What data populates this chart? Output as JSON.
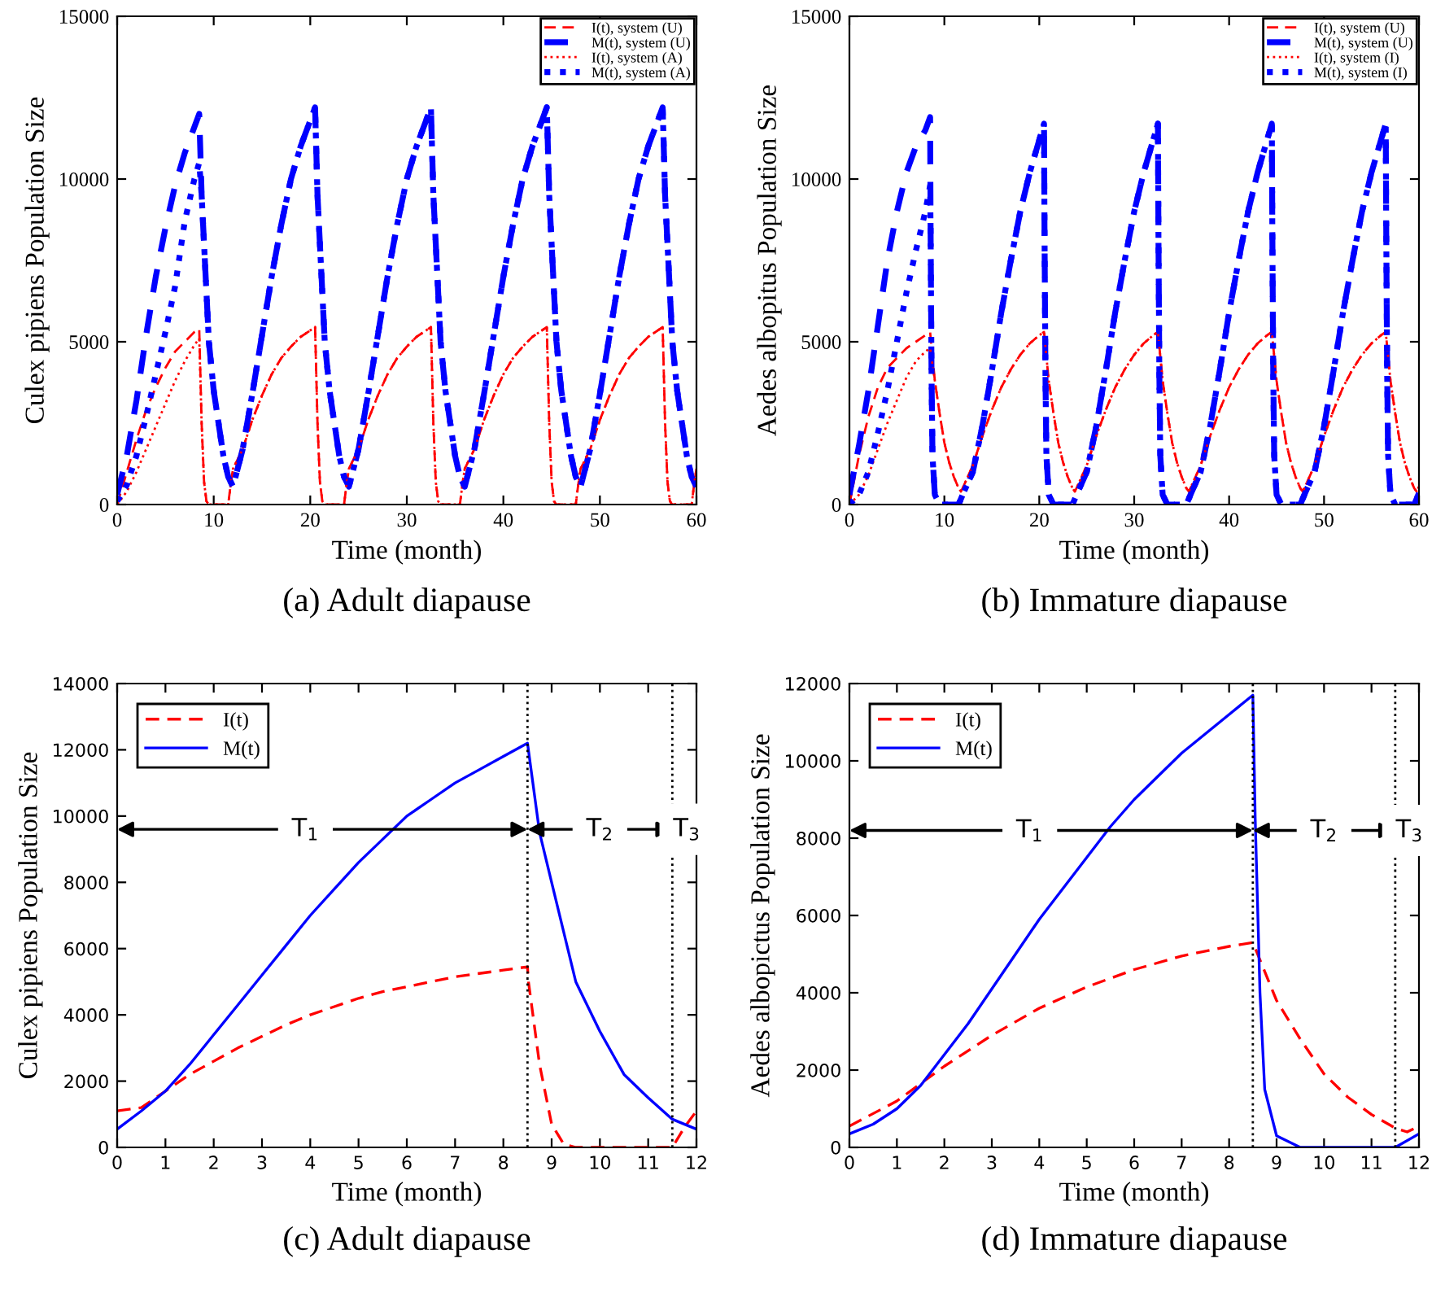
{
  "chart_data": [
    {
      "type": "line",
      "title": "(a) Adult diapause",
      "xlabel": "Time (month)",
      "ylabel": "Culex pipiens Population Size",
      "xlim": [
        0,
        60
      ],
      "ylim": [
        0,
        15000
      ],
      "xticks": [
        0,
        10,
        20,
        30,
        40,
        50,
        60
      ],
      "yticks": [
        0,
        5000,
        10000,
        15000
      ],
      "grid": false,
      "legend": "top right",
      "marker": "none",
      "series": [
        {
          "name": "I(t), system (U)",
          "color": "#ff0000",
          "line_style": "dashed",
          "x": [
            0,
            1,
            2,
            3,
            4,
            5,
            6,
            7,
            8,
            8.5,
            8.75,
            9,
            9.25,
            9.5,
            11.5,
            11.75,
            12,
            13,
            14,
            15,
            16,
            17,
            18,
            19,
            20,
            20.5,
            20.75,
            21,
            21.25,
            21.5,
            23.5,
            23.75,
            24,
            25,
            26,
            27,
            28,
            29,
            30,
            31,
            32,
            32.5,
            32.75,
            33,
            33.25,
            33.5,
            35.5,
            35.75,
            36,
            37,
            38,
            39,
            40,
            41,
            42,
            43,
            44,
            44.5,
            44.75,
            45,
            45.25,
            45.5,
            47.5,
            47.75,
            48,
            49,
            50,
            51,
            52,
            53,
            54,
            55,
            56,
            56.5,
            56.75,
            57,
            57.25,
            57.5,
            59.5,
            59.75,
            60
          ],
          "values": [
            0,
            1000,
            2000,
            2900,
            3600,
            4200,
            4700,
            5000,
            5300,
            5400,
            2500,
            700,
            100,
            0,
            0,
            600,
            1100,
            1700,
            2600,
            3350,
            4000,
            4500,
            4850,
            5150,
            5350,
            5450,
            2500,
            700,
            100,
            0,
            0,
            600,
            1100,
            1700,
            2600,
            3350,
            4000,
            4500,
            4850,
            5150,
            5350,
            5450,
            2500,
            700,
            100,
            0,
            0,
            600,
            1100,
            1700,
            2600,
            3350,
            4000,
            4500,
            4850,
            5150,
            5350,
            5450,
            2500,
            700,
            100,
            0,
            0,
            600,
            1100,
            1700,
            2600,
            3350,
            4000,
            4500,
            4850,
            5150,
            5350,
            5450,
            2500,
            700,
            100,
            0,
            0,
            600,
            1100
          ]
        },
        {
          "name": "M(t), system (U)",
          "color": "#0000ff",
          "line_style": "dashed",
          "x": [
            0,
            1,
            2,
            3,
            4,
            5,
            6,
            7,
            8,
            8.5,
            8.75,
            9,
            9.5,
            10,
            11,
            11.5,
            12,
            13,
            14,
            15,
            16,
            17,
            18,
            19,
            20,
            20.5,
            20.75,
            21,
            21.5,
            22,
            23,
            23.5,
            24,
            25,
            26,
            27,
            28,
            29,
            30,
            31,
            32,
            32.5,
            32.75,
            33,
            33.5,
            34,
            35,
            35.5,
            36,
            37,
            38,
            39,
            40,
            41,
            42,
            43,
            44,
            44.5,
            44.75,
            45,
            45.5,
            46,
            47,
            47.5,
            48,
            49,
            50,
            51,
            52,
            53,
            54,
            55,
            56,
            56.5,
            56.75,
            57,
            57.5,
            58,
            59,
            59.5,
            60
          ],
          "values": [
            300,
            1500,
            3200,
            5200,
            7000,
            8500,
            9800,
            10800,
            11600,
            12000,
            9500,
            8000,
            5000,
            3500,
            1500,
            850,
            550,
            1700,
            3400,
            5200,
            7000,
            8600,
            10000,
            11000,
            11800,
            12200,
            9500,
            8000,
            5000,
            3500,
            1500,
            850,
            550,
            1700,
            3400,
            5200,
            7000,
            8600,
            10000,
            11000,
            11800,
            12200,
            9500,
            8000,
            5000,
            3500,
            1500,
            850,
            550,
            1700,
            3400,
            5200,
            7000,
            8600,
            10000,
            11000,
            11800,
            12200,
            9500,
            8000,
            5000,
            3500,
            1500,
            850,
            550,
            1700,
            3400,
            5200,
            7000,
            8600,
            10000,
            11000,
            11800,
            12200,
            9500,
            8000,
            5000,
            3500,
            1500,
            850,
            550
          ]
        },
        {
          "name": "I(t), system (A)",
          "color": "#ff0000",
          "line_style": "dotted",
          "x": [
            0,
            1,
            2,
            3,
            4,
            5,
            6,
            7,
            8,
            8.5,
            8.75,
            9,
            9.25,
            9.5,
            11.5,
            11.75,
            12,
            13,
            14,
            15,
            16,
            17,
            18,
            19,
            20,
            20.5,
            20.75,
            21,
            21.25,
            21.5,
            23.5,
            23.75,
            24,
            25,
            26,
            27,
            28,
            29,
            30,
            31,
            32,
            32.5,
            32.75,
            33,
            33.25,
            33.5,
            35.5,
            35.75,
            36,
            37,
            38,
            39,
            40,
            41,
            42,
            43,
            44,
            44.5,
            44.75,
            45,
            45.25,
            45.5,
            47.5,
            47.75,
            48,
            49,
            50,
            51,
            52,
            53,
            54,
            55,
            56,
            56.5,
            56.75,
            57,
            57.25,
            57.5,
            59.5,
            59.75,
            60
          ],
          "values": [
            0,
            400,
            1000,
            1700,
            2400,
            3100,
            3800,
            4400,
            4900,
            5100,
            2500,
            700,
            100,
            0,
            0,
            600,
            1100,
            1700,
            2600,
            3350,
            4000,
            4500,
            4850,
            5150,
            5350,
            5450,
            2500,
            700,
            100,
            0,
            0,
            600,
            1100,
            1700,
            2600,
            3350,
            4000,
            4500,
            4850,
            5150,
            5350,
            5450,
            2500,
            700,
            100,
            0,
            0,
            600,
            1100,
            1700,
            2600,
            3350,
            4000,
            4500,
            4850,
            5150,
            5350,
            5450,
            2500,
            700,
            100,
            0,
            0,
            600,
            1100,
            1700,
            2600,
            3350,
            4000,
            4500,
            4850,
            5150,
            5350,
            5450,
            2500,
            700,
            100,
            0,
            0,
            600,
            1100
          ]
        },
        {
          "name": "M(t), system (A)",
          "color": "#0000ff",
          "line_style": "dotted",
          "x": [
            0,
            1,
            2,
            3,
            4,
            5,
            6,
            7,
            8,
            8.5,
            8.75,
            9,
            9.5,
            10,
            11,
            11.5,
            12,
            13,
            14,
            15,
            16,
            17,
            18,
            19,
            20,
            20.5,
            20.75,
            21,
            21.5,
            22,
            23,
            23.5,
            24,
            25,
            26,
            27,
            28,
            29,
            30,
            31,
            32,
            32.5,
            32.75,
            33,
            33.5,
            34,
            35,
            35.5,
            36,
            37,
            38,
            39,
            40,
            41,
            42,
            43,
            44,
            44.5,
            44.75,
            45,
            45.5,
            46,
            47,
            47.5,
            48,
            49,
            50,
            51,
            52,
            53,
            54,
            55,
            56,
            56.5,
            56.75,
            57,
            57.5,
            58,
            59,
            59.5,
            60
          ],
          "values": [
            100,
            600,
            1500,
            2700,
            4000,
            5300,
            6700,
            8700,
            10000,
            10500,
            9500,
            8000,
            5000,
            3500,
            1500,
            850,
            550,
            1700,
            3400,
            5200,
            7000,
            8600,
            10000,
            11000,
            11800,
            12200,
            9500,
            8000,
            5000,
            3500,
            1500,
            850,
            550,
            1700,
            3400,
            5200,
            7000,
            8600,
            10000,
            11000,
            11800,
            12200,
            9500,
            8000,
            5000,
            3500,
            1500,
            850,
            550,
            1700,
            3400,
            5200,
            7000,
            8600,
            10000,
            11000,
            11800,
            12200,
            9500,
            8000,
            5000,
            3500,
            1500,
            850,
            550,
            1700,
            3400,
            5200,
            7000,
            8600,
            10000,
            11000,
            11800,
            12200,
            9500,
            8000,
            5000,
            3500,
            1500,
            850,
            550
          ]
        }
      ]
    },
    {
      "type": "line",
      "title": "(b) Immature diapause",
      "xlabel": "Time (month)",
      "ylabel": "Aedes albopitus Population Size",
      "xlim": [
        0,
        60
      ],
      "ylim": [
        0,
        15000
      ],
      "xticks": [
        0,
        10,
        20,
        30,
        40,
        50,
        60
      ],
      "yticks": [
        0,
        5000,
        10000,
        15000
      ],
      "grid": false,
      "legend": "top right",
      "marker": "none",
      "series": [
        {
          "name": "I(t), system (U)",
          "color": "#ff0000",
          "line_style": "dashed",
          "x": [
            0,
            1,
            2,
            3,
            4,
            5,
            6,
            7,
            8,
            8.5,
            9,
            9.5,
            10,
            10.5,
            11,
            11.5,
            11.75,
            12,
            13,
            14,
            15,
            16,
            17,
            18,
            19,
            20,
            20.5,
            21,
            21.5,
            22,
            22.5,
            23,
            23.5,
            23.75,
            24,
            25,
            26,
            27,
            28,
            29,
            30,
            31,
            32,
            32.5,
            33,
            33.5,
            34,
            34.5,
            35,
            35.5,
            35.75,
            36,
            37,
            38,
            39,
            40,
            41,
            42,
            43,
            44,
            44.5,
            45,
            45.5,
            46,
            46.5,
            47,
            47.5,
            47.75,
            48,
            49,
            50,
            51,
            52,
            53,
            54,
            55,
            56,
            56.5,
            57,
            57.5,
            58,
            58.5,
            59,
            59.5,
            59.75,
            60
          ],
          "values": [
            0,
            1500,
            2700,
            3600,
            4200,
            4500,
            4800,
            5000,
            5200,
            5300,
            3800,
            2800,
            1900,
            1300,
            850,
            500,
            400,
            550,
            1200,
            2100,
            2900,
            3600,
            4150,
            4600,
            4950,
            5200,
            5300,
            3800,
            2800,
            1900,
            1300,
            850,
            500,
            400,
            550,
            1200,
            2100,
            2900,
            3600,
            4150,
            4600,
            4950,
            5200,
            5300,
            3800,
            2800,
            1900,
            1300,
            850,
            500,
            400,
            550,
            1200,
            2100,
            2900,
            3600,
            4150,
            4600,
            4950,
            5200,
            5300,
            3800,
            2800,
            1900,
            1300,
            850,
            500,
            400,
            550,
            1200,
            2100,
            2900,
            3600,
            4150,
            4600,
            4950,
            5200,
            5300,
            3800,
            2800,
            1900,
            1300,
            850,
            500,
            400,
            550
          ]
        },
        {
          "name": "M(t), system (U)",
          "color": "#0000ff",
          "line_style": "dashed",
          "x": [
            0,
            1,
            2,
            3,
            4,
            5,
            6,
            7,
            8,
            8.5,
            8.55,
            8.65,
            8.75,
            9,
            9.5,
            11.5,
            12,
            13,
            14,
            15,
            16,
            17,
            18,
            19,
            20,
            20.5,
            20.55,
            20.65,
            20.75,
            21,
            21.5,
            23.5,
            24,
            25,
            26,
            27,
            28,
            29,
            30,
            31,
            32,
            32.5,
            32.55,
            32.65,
            32.75,
            33,
            33.5,
            35.5,
            36,
            37,
            38,
            39,
            40,
            41,
            42,
            43,
            44,
            44.5,
            44.55,
            44.65,
            44.75,
            45,
            45.5,
            47.5,
            48,
            49,
            50,
            51,
            52,
            53,
            54,
            55,
            56,
            56.5,
            56.55,
            56.65,
            56.75,
            57,
            57.5,
            59.5,
            60
          ],
          "values": [
            300,
            1800,
            3500,
            5500,
            7500,
            9000,
            10200,
            11000,
            11500,
            11900,
            8500,
            4000,
            1500,
            300,
            0,
            0,
            350,
            1000,
            2400,
            4100,
            5900,
            7500,
            9000,
            10200,
            11200,
            11700,
            8500,
            4000,
            1500,
            300,
            0,
            0,
            350,
            1000,
            2400,
            4100,
            5900,
            7500,
            9000,
            10200,
            11200,
            11700,
            8500,
            4000,
            1500,
            300,
            0,
            0,
            350,
            1000,
            2400,
            4100,
            5900,
            7500,
            9000,
            10200,
            11200,
            11700,
            8500,
            4000,
            1500,
            300,
            0,
            0,
            350,
            1000,
            2400,
            4100,
            5900,
            7500,
            9000,
            10200,
            11200,
            11700,
            8500,
            4000,
            1500,
            300,
            0,
            0,
            350
          ]
        },
        {
          "name": "I(t), system (I)",
          "color": "#ff0000",
          "line_style": "dotted",
          "x": [
            0,
            1,
            2,
            3,
            4,
            5,
            6,
            7,
            8,
            8.5,
            9,
            9.5,
            10,
            10.5,
            11,
            11.5,
            11.75,
            12,
            13,
            14,
            15,
            16,
            17,
            18,
            19,
            20,
            20.5,
            21,
            21.5,
            22,
            22.5,
            23,
            23.5,
            23.75,
            24,
            25,
            26,
            27,
            28,
            29,
            30,
            31,
            32,
            32.5,
            33,
            33.5,
            34,
            34.5,
            35,
            35.5,
            35.75,
            36,
            37,
            38,
            39,
            40,
            41,
            42,
            43,
            44,
            44.5,
            45,
            45.5,
            46,
            46.5,
            47,
            47.5,
            47.75,
            48,
            49,
            50,
            51,
            52,
            53,
            54,
            55,
            56,
            56.5,
            57,
            57.5,
            58,
            58.5,
            59,
            59.5,
            59.75,
            60
          ],
          "values": [
            0,
            300,
            900,
            1700,
            2500,
            3200,
            3900,
            4400,
            4700,
            4800,
            3800,
            2800,
            1900,
            1300,
            850,
            500,
            400,
            550,
            1200,
            2100,
            2900,
            3600,
            4150,
            4600,
            4950,
            5200,
            5300,
            3800,
            2800,
            1900,
            1300,
            850,
            500,
            400,
            550,
            1200,
            2100,
            2900,
            3600,
            4150,
            4600,
            4950,
            5200,
            5300,
            3800,
            2800,
            1900,
            1300,
            850,
            500,
            400,
            550,
            1200,
            2100,
            2900,
            3600,
            4150,
            4600,
            4950,
            5200,
            5300,
            3800,
            2800,
            1900,
            1300,
            850,
            500,
            400,
            550,
            1200,
            2100,
            2900,
            3600,
            4150,
            4600,
            4950,
            5200,
            5300,
            3800,
            2800,
            1900,
            1300,
            850,
            500,
            400,
            550
          ]
        },
        {
          "name": "M(t), system (I)",
          "color": "#0000ff",
          "line_style": "dotted",
          "x": [
            0,
            1,
            2,
            3,
            4,
            5,
            6,
            7,
            8,
            8.5,
            8.55,
            8.65,
            8.75,
            9,
            9.5,
            11.5,
            12,
            13,
            14,
            15,
            16,
            17,
            18,
            19,
            20,
            20.5,
            20.55,
            20.65,
            20.75,
            21,
            21.5,
            23.5,
            24,
            25,
            26,
            27,
            28,
            29,
            30,
            31,
            32,
            32.5,
            32.55,
            32.65,
            32.75,
            33,
            33.5,
            35.5,
            36,
            37,
            38,
            39,
            40,
            41,
            42,
            43,
            44,
            44.5,
            44.55,
            44.65,
            44.75,
            45,
            45.5,
            47.5,
            48,
            49,
            50,
            51,
            52,
            53,
            54,
            55,
            56,
            56.5,
            56.55,
            56.65,
            56.75,
            57,
            57.5,
            59.5,
            60
          ],
          "values": [
            0,
            300,
            1000,
            2200,
            3500,
            5000,
            6500,
            7800,
            9000,
            9800,
            8500,
            4000,
            1500,
            300,
            0,
            0,
            350,
            1000,
            2400,
            4100,
            5900,
            7500,
            9000,
            10200,
            11200,
            11700,
            8500,
            4000,
            1500,
            300,
            0,
            0,
            350,
            1000,
            2400,
            4100,
            5900,
            7500,
            9000,
            10200,
            11200,
            11700,
            8500,
            4000,
            1500,
            300,
            0,
            0,
            350,
            1000,
            2400,
            4100,
            5900,
            7500,
            9000,
            10200,
            11200,
            11700,
            8500,
            4000,
            1500,
            300,
            0,
            0,
            350,
            1000,
            2400,
            4100,
            5900,
            7500,
            9000,
            10200,
            11200,
            11700,
            8500,
            4000,
            1500,
            300,
            0,
            0,
            350
          ]
        }
      ]
    },
    {
      "type": "line",
      "title": "(c) Adult diapause",
      "xlabel": "Time (month)",
      "ylabel": "Culex pipiens Population Size",
      "xlim": [
        0,
        12
      ],
      "ylim": [
        0,
        14000
      ],
      "xticks": [
        0,
        1,
        2,
        3,
        4,
        5,
        6,
        7,
        8,
        9,
        10,
        11,
        12
      ],
      "yticks": [
        0,
        2000,
        4000,
        6000,
        8000,
        10000,
        12000,
        14000
      ],
      "grid": false,
      "legend": "top left",
      "marker": "none",
      "ref_lines": [
        {
          "axis": "x",
          "value": 8.5,
          "color": "#000000",
          "line_style": "dotted"
        },
        {
          "axis": "x",
          "value": 11.5,
          "color": "#000000",
          "line_style": "dotted"
        }
      ],
      "annotations": [
        {
          "text": "T$_{1}$",
          "x": 3.9,
          "y": 9600
        },
        {
          "text": "T$_{2}$",
          "x": 10,
          "y": 9600
        },
        {
          "text": "T$_{3}$",
          "x": 11.8,
          "y": 9600
        }
      ],
      "series": [
        {
          "name": "I(t)",
          "color": "#ff0000",
          "line_style": "dashed",
          "x": [
            0,
            0.5,
            1,
            1.5,
            2,
            2.5,
            3,
            3.5,
            4,
            4.5,
            5,
            5.5,
            6,
            6.5,
            7,
            7.5,
            8,
            8.5,
            8.52,
            8.75,
            9,
            9.25,
            9.5,
            11.5,
            11.75,
            12
          ],
          "values": [
            1100,
            1200,
            1700,
            2200,
            2600,
            3000,
            3350,
            3700,
            4000,
            4250,
            4500,
            4700,
            4850,
            5000,
            5150,
            5250,
            5350,
            5450,
            5000,
            2500,
            700,
            100,
            0,
            0,
            600,
            1100
          ]
        },
        {
          "name": "M(t)",
          "color": "#0000ff",
          "line_style": "solid",
          "x": [
            0,
            0.5,
            1,
            1.5,
            2,
            2.5,
            3,
            3.5,
            4,
            4.5,
            5,
            5.5,
            6,
            6.5,
            7,
            7.5,
            8,
            8.5,
            8.75,
            9,
            9.5,
            10,
            10.5,
            11,
            11.5,
            12
          ],
          "values": [
            550,
            1100,
            1700,
            2500,
            3400,
            4300,
            5200,
            6100,
            7000,
            7800,
            8600,
            9300,
            10000,
            10500,
            11000,
            11400,
            11800,
            12200,
            9500,
            8000,
            5000,
            3500,
            2200,
            1500,
            850,
            550
          ]
        }
      ]
    },
    {
      "type": "line",
      "title": "(d) Immature diapause",
      "xlabel": "Time (month)",
      "ylabel": "Aedes albopictus Population Size",
      "xlim": [
        0,
        12
      ],
      "ylim": [
        0,
        12000
      ],
      "xticks": [
        0,
        1,
        2,
        3,
        4,
        5,
        6,
        7,
        8,
        9,
        10,
        11,
        12
      ],
      "yticks": [
        0,
        2000,
        4000,
        6000,
        8000,
        10000,
        12000
      ],
      "grid": false,
      "legend": "top left",
      "marker": "none",
      "ref_lines": [
        {
          "axis": "x",
          "value": 8.5,
          "color": "#000000",
          "line_style": "dotted"
        },
        {
          "axis": "x",
          "value": 11.5,
          "color": "#000000",
          "line_style": "dotted"
        }
      ],
      "annotations": [
        {
          "text": "T$_{1}$",
          "x": 3.8,
          "y": 8200
        },
        {
          "text": "T$_{2}$",
          "x": 10,
          "y": 8200
        },
        {
          "text": "T$_{3}$",
          "x": 11.8,
          "y": 8200
        }
      ],
      "series": [
        {
          "name": "I(t)",
          "color": "#ff0000",
          "line_style": "dashed",
          "x": [
            0,
            1,
            2,
            3,
            4,
            5,
            6,
            7,
            8,
            8.5,
            9,
            9.5,
            10,
            10.5,
            11,
            11.5,
            11.75,
            12
          ],
          "values": [
            550,
            1200,
            2100,
            2900,
            3600,
            4150,
            4600,
            4950,
            5200,
            5300,
            3800,
            2800,
            1900,
            1300,
            850,
            500,
            400,
            550
          ]
        },
        {
          "name": "M(t)",
          "color": "#0000ff",
          "line_style": "solid",
          "x": [
            0,
            0.5,
            1,
            1.5,
            2,
            2.5,
            3,
            3.5,
            4,
            4.5,
            5,
            5.5,
            6,
            6.5,
            7,
            7.5,
            8,
            8.5,
            8.55,
            8.65,
            8.75,
            9,
            9.5,
            11.5,
            12
          ],
          "values": [
            350,
            600,
            1000,
            1600,
            2400,
            3200,
            4100,
            5000,
            5900,
            6700,
            7500,
            8300,
            9000,
            9600,
            10200,
            10700,
            11200,
            11700,
            8500,
            4000,
            1500,
            300,
            0,
            0,
            350
          ]
        }
      ]
    }
  ]
}
